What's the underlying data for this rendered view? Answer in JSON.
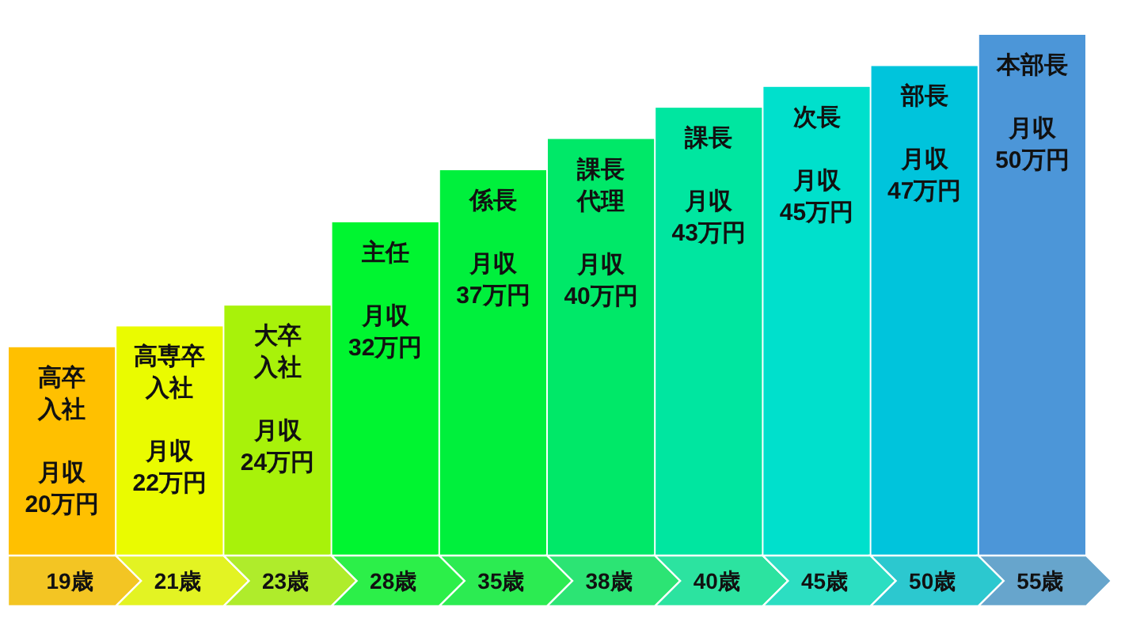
{
  "chart_data": {
    "type": "bar",
    "categories": [
      "19歳",
      "21歳",
      "23歳",
      "28歳",
      "35歳",
      "38歳",
      "40歳",
      "45歳",
      "50歳",
      "55歳"
    ],
    "values": [
      20,
      22,
      24,
      32,
      37,
      40,
      43,
      45,
      47,
      50
    ],
    "colors": [
      "#ffc000",
      "#eafb00",
      "#a8f20a",
      "#00f530",
      "#00f03c",
      "#00e868",
      "#00e6a0",
      "#00e0cc",
      "#00c4dc",
      "#4c96d8"
    ],
    "value_labels": [
      "月収\n20万円",
      "月収\n22万円",
      "月収\n24万円",
      "月収\n32万円",
      "月収\n37万円",
      "月収\n40万円",
      "月収\n43万円",
      "月収\n45万円",
      "月収\n47万円",
      "月収\n50万円"
    ],
    "annotations": [
      {
        "text": "高卒",
        "x": "19歳",
        "y": 20
      },
      {
        "text": "入社",
        "x": "19歳",
        "y": 20
      },
      {
        "text": "高専卒",
        "x": "21歳",
        "y": 22
      },
      {
        "text": "入社",
        "x": "21歳",
        "y": 22
      },
      {
        "text": "大卒",
        "x": "23歳",
        "y": 24
      },
      {
        "text": "入社",
        "x": "23歳",
        "y": 24
      },
      {
        "text": "主任",
        "x": "28歳",
        "y": 32
      },
      {
        "text": "係長",
        "x": "35歳",
        "y": 37
      },
      {
        "text": "課長",
        "x": "38歳",
        "y": 40
      },
      {
        "text": "代理",
        "x": "38歳",
        "y": 40
      },
      {
        "text": "課長",
        "x": "40歳",
        "y": 43
      },
      {
        "text": "次長",
        "x": "45歳",
        "y": 45
      },
      {
        "text": "部長",
        "x": "50歳",
        "y": 47
      },
      {
        "text": "本部長",
        "x": "55歳",
        "y": 50
      }
    ]
  }
}
